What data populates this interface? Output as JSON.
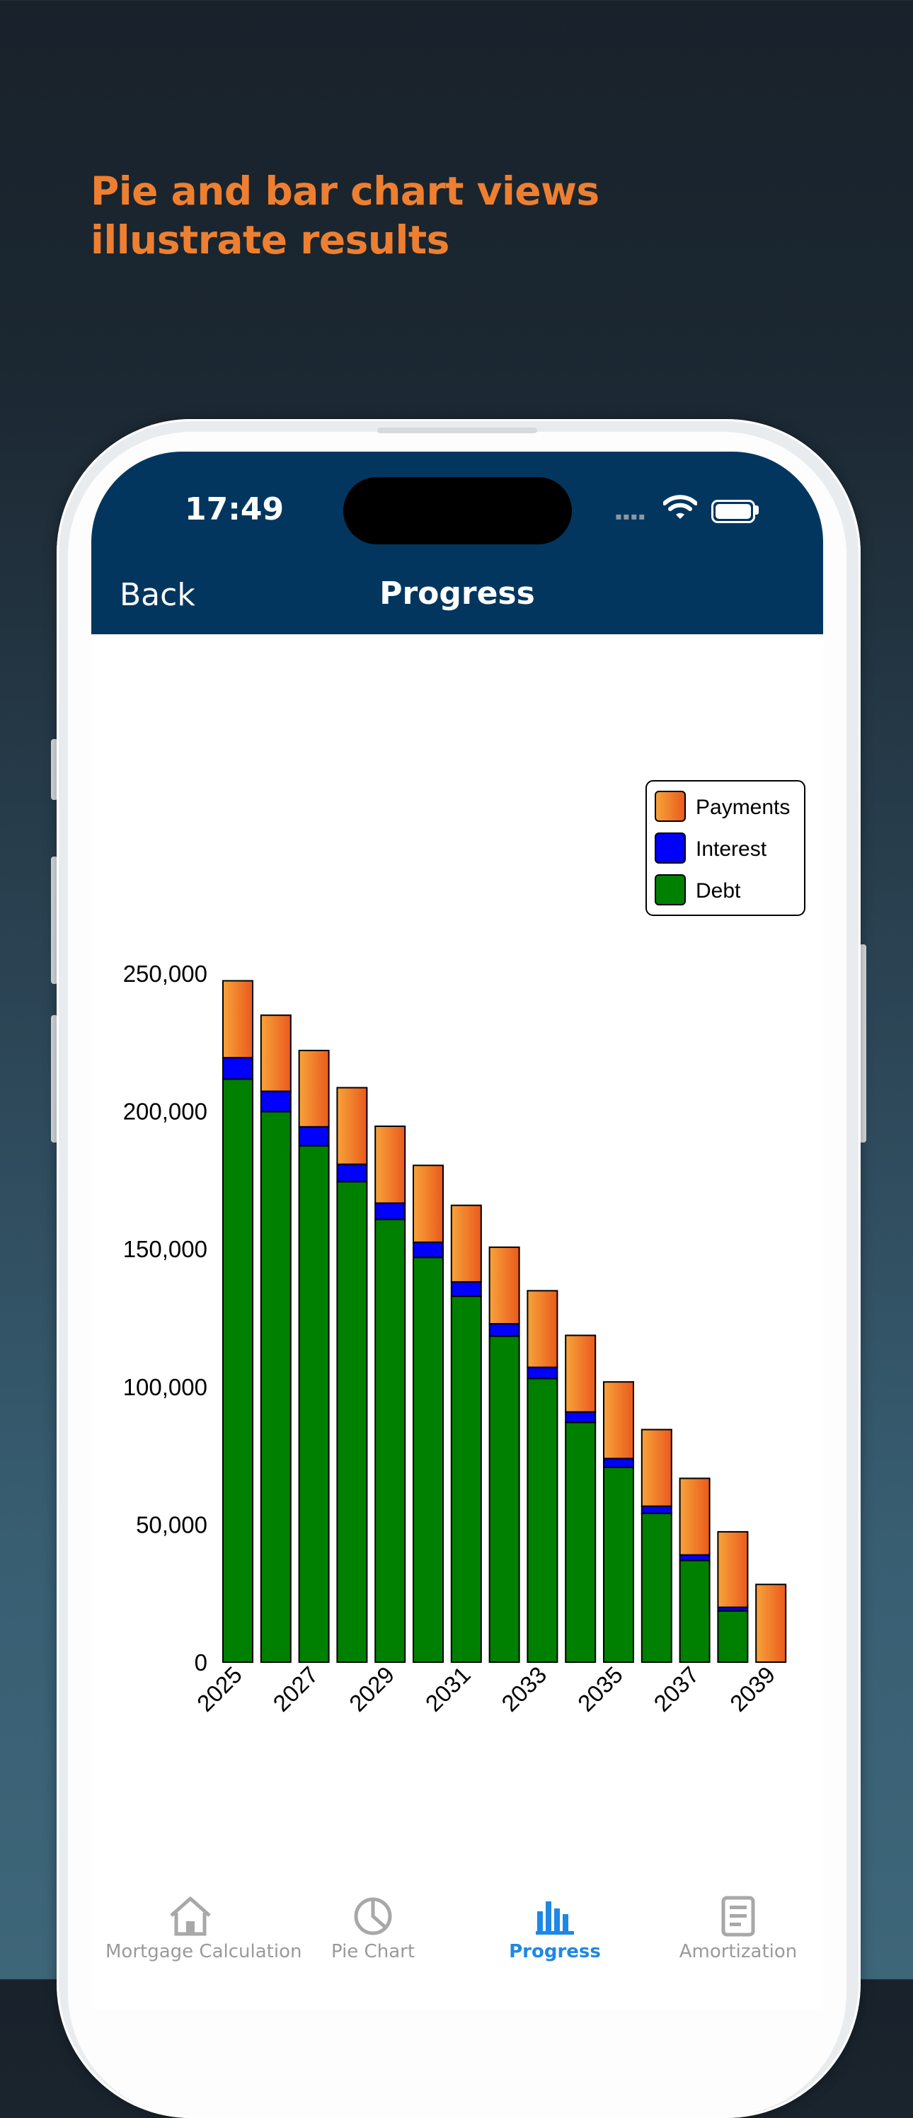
{
  "headline": {
    "line1": "Pie and bar chart views",
    "line2": "illustrate results"
  },
  "status_bar": {
    "time": "17:49"
  },
  "nav": {
    "back_label": "Back",
    "title": "Progress"
  },
  "chart_data": {
    "type": "bar",
    "stacked": true,
    "categories": [
      "2025",
      "2026",
      "2027",
      "2028",
      "2029",
      "2030",
      "2031",
      "2032",
      "2033",
      "2034",
      "2035",
      "2036",
      "2037",
      "2038",
      "2039"
    ],
    "tick_labels_shown": [
      "2025",
      "2027",
      "2029",
      "2031",
      "2033",
      "2035",
      "2037",
      "2039"
    ],
    "series": [
      {
        "name": "Debt",
        "color": "#008000",
        "values": [
          211600,
          199800,
          187400,
          174400,
          160700,
          146900,
          132800,
          118300,
          102900,
          87000,
          70700,
          54000,
          36900,
          18600,
          0
        ]
      },
      {
        "name": "Interest",
        "color": "#0000ff",
        "values": [
          7800,
          7400,
          6900,
          6300,
          5900,
          5500,
          5200,
          4500,
          4100,
          3800,
          3200,
          2600,
          2000,
          1300,
          0
        ]
      },
      {
        "name": "Payments",
        "color": "#f27a26",
        "values": [
          27900,
          27600,
          27700,
          27800,
          27900,
          27900,
          27800,
          27800,
          27800,
          27800,
          27800,
          27800,
          27800,
          27400,
          28200
        ]
      }
    ],
    "yticks": [
      "0",
      "50,000",
      "100,000",
      "150,000",
      "200,000",
      "250,000"
    ],
    "ylim": [
      0,
      250000
    ],
    "legend": {
      "placement": "top-right",
      "entries": [
        "Payments",
        "Interest",
        "Debt"
      ]
    }
  },
  "tabs": [
    {
      "label": "Mortgage Calculation",
      "icon": "house-icon"
    },
    {
      "label": "Pie Chart",
      "icon": "pie-chart-icon"
    },
    {
      "label": "Progress",
      "icon": "bar-chart-icon",
      "active": true
    },
    {
      "label": "Amortization",
      "icon": "document-icon"
    }
  ]
}
